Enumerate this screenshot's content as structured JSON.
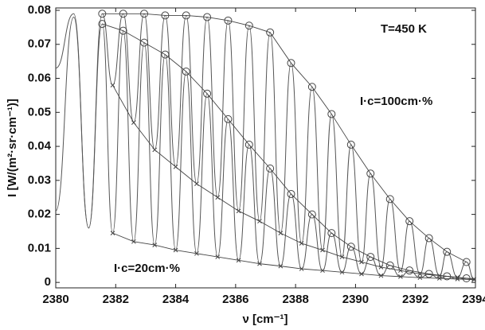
{
  "chart_data": {
    "type": "line",
    "x_label": "ν [cm⁻¹]",
    "y_label": "I [W/(m²·sr·cm⁻¹)]",
    "annotations": [
      "T=450 K",
      "I·c=100cm·%",
      "I·c=20cm·%"
    ],
    "xlim": [
      2380,
      2394
    ],
    "xticks": [
      2380,
      2382,
      2384,
      2386,
      2388,
      2390,
      2392,
      2394
    ],
    "ylim": [
      -0.0016,
      0.0807
    ],
    "yticks": [
      0,
      0.01,
      0.02,
      0.03,
      0.04,
      0.05,
      0.06,
      0.07,
      0.08
    ],
    "grid": false,
    "series": [
      {
        "style": "spectrum",
        "color": "#555555",
        "x": [
          2380,
          2380.6,
          2381.1,
          2381.55,
          2381.9,
          2382.25,
          2382.6,
          2382.95,
          2383.3,
          2383.65,
          2384.0,
          2384.35,
          2384.7,
          2385.05,
          2385.4,
          2385.75,
          2386.1,
          2386.45,
          2386.8,
          2387.15,
          2387.5,
          2387.85,
          2388.2,
          2388.55,
          2388.9,
          2389.2,
          2389.55,
          2389.85,
          2390.2,
          2390.5,
          2390.85,
          2391.15,
          2391.5,
          2391.8,
          2392.15,
          2392.45,
          2392.8,
          2393.05,
          2393.4,
          2393.7,
          2393.95
        ],
        "values": [
          0.063,
          0.079,
          0.016,
          0.079,
          0.058,
          0.079,
          0.047,
          0.079,
          0.039,
          0.0785,
          0.034,
          0.0785,
          0.029,
          0.078,
          0.025,
          0.077,
          0.021,
          0.0755,
          0.018,
          0.0735,
          0.0145,
          0.0645,
          0.0115,
          0.0575,
          0.0095,
          0.0495,
          0.0075,
          0.0405,
          0.006,
          0.032,
          0.0045,
          0.0245,
          0.0035,
          0.018,
          0.0025,
          0.013,
          0.002,
          0.009,
          0.0015,
          0.006,
          0.001
        ]
      },
      {
        "style": "spectrum",
        "color": "#555555",
        "x": [
          2380,
          2380.6,
          2381.1,
          2381.55,
          2381.9,
          2382.25,
          2382.6,
          2382.95,
          2383.3,
          2383.65,
          2384.0,
          2384.35,
          2384.7,
          2385.05,
          2385.4,
          2385.75,
          2386.1,
          2386.45,
          2386.8,
          2387.15,
          2387.5,
          2387.85,
          2388.2,
          2388.55,
          2388.9,
          2389.2,
          2389.55,
          2389.85,
          2390.2,
          2390.5,
          2390.85,
          2391.15,
          2391.5,
          2391.8,
          2392.15,
          2392.45,
          2392.8,
          2393.05,
          2393.4,
          2393.7,
          2393.95
        ],
        "values": [
          0.021,
          0.078,
          0.016,
          0.076,
          0.0145,
          0.074,
          0.012,
          0.0705,
          0.011,
          0.067,
          0.0095,
          0.062,
          0.0085,
          0.0555,
          0.0075,
          0.048,
          0.0065,
          0.0405,
          0.0055,
          0.0335,
          0.0048,
          0.026,
          0.004,
          0.02,
          0.0035,
          0.0145,
          0.003,
          0.0105,
          0.0025,
          0.0075,
          0.002,
          0.005,
          0.0017,
          0.0035,
          0.0014,
          0.0025,
          0.0012,
          0.0018,
          0.001,
          0.0012,
          0.0008
        ]
      },
      {
        "style": "circle",
        "color": "#444444",
        "x": [
          2381.55,
          2382.25,
          2382.95,
          2383.65,
          2384.35,
          2385.05,
          2385.75,
          2386.45,
          2387.15,
          2387.85,
          2388.55,
          2389.2,
          2389.85,
          2390.5,
          2391.15,
          2391.8,
          2392.45,
          2393.05,
          2393.7
        ],
        "values": [
          0.079,
          0.079,
          0.079,
          0.0785,
          0.0785,
          0.078,
          0.077,
          0.0755,
          0.0735,
          0.0645,
          0.0575,
          0.0495,
          0.0405,
          0.032,
          0.0245,
          0.018,
          0.013,
          0.009,
          0.006
        ]
      },
      {
        "style": "circle",
        "color": "#444444",
        "x": [
          2381.55,
          2382.25,
          2382.95,
          2383.65,
          2384.35,
          2385.05,
          2385.75,
          2386.45,
          2387.15,
          2387.85,
          2388.55,
          2389.2,
          2389.85,
          2390.5,
          2391.15,
          2391.8,
          2392.45,
          2393.05,
          2393.7
        ],
        "values": [
          0.076,
          0.074,
          0.0705,
          0.067,
          0.062,
          0.0555,
          0.048,
          0.0405,
          0.0335,
          0.026,
          0.02,
          0.0145,
          0.0105,
          0.0075,
          0.005,
          0.0035,
          0.0025,
          0.0018,
          0.0012
        ]
      },
      {
        "style": "cross",
        "color": "#444444",
        "x": [
          2381.9,
          2382.6,
          2383.3,
          2384.0,
          2384.7,
          2385.4,
          2386.1,
          2386.8,
          2387.5,
          2388.2,
          2388.9,
          2389.55,
          2390.2,
          2390.85,
          2391.5,
          2392.15,
          2392.8,
          2393.4,
          2393.95
        ],
        "values": [
          0.058,
          0.047,
          0.039,
          0.034,
          0.029,
          0.025,
          0.021,
          0.018,
          0.0145,
          0.0115,
          0.0095,
          0.0075,
          0.006,
          0.0045,
          0.0035,
          0.0025,
          0.002,
          0.0015,
          0.001
        ]
      },
      {
        "style": "cross",
        "color": "#444444",
        "x": [
          2381.9,
          2382.6,
          2383.3,
          2384.0,
          2384.7,
          2385.4,
          2386.1,
          2386.8,
          2387.5,
          2388.2,
          2388.9,
          2389.55,
          2390.2,
          2390.85,
          2391.5,
          2392.15,
          2392.8,
          2393.4,
          2393.95
        ],
        "values": [
          0.0145,
          0.012,
          0.011,
          0.0095,
          0.0085,
          0.0075,
          0.0065,
          0.0055,
          0.0048,
          0.004,
          0.0035,
          0.003,
          0.0025,
          0.002,
          0.0017,
          0.0014,
          0.0012,
          0.001,
          0.0008
        ]
      }
    ]
  }
}
